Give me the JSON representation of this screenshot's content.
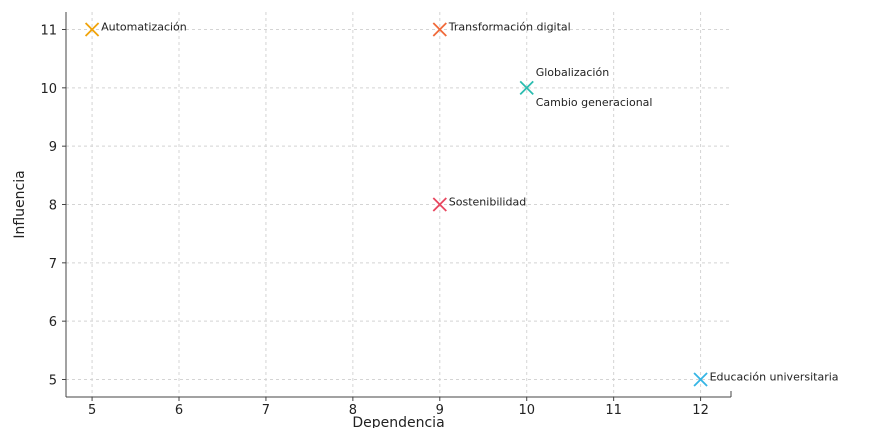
{
  "chart_data": {
    "type": "scatter",
    "title": "",
    "xlabel": "Dependencia",
    "ylabel": "Influencia",
    "xlim": [
      4.7,
      12.35
    ],
    "ylim": [
      4.7,
      11.3
    ],
    "x_ticks": [
      5,
      6,
      7,
      8,
      9,
      10,
      11,
      12
    ],
    "y_ticks": [
      5,
      6,
      7,
      8,
      9,
      10,
      11
    ],
    "grid": true,
    "marker": "x",
    "points": [
      {
        "label": "Automatización",
        "x": 5,
        "y": 11,
        "color": "#f0a30a",
        "label_pos": "right"
      },
      {
        "label": "Transformación digital",
        "x": 9,
        "y": 11,
        "color": "#f06a3a",
        "label_pos": "right"
      },
      {
        "label": "Globalización",
        "x": 10,
        "y": 10,
        "color": "#2bbcb0",
        "label_pos": "above"
      },
      {
        "label": "Cambio generacional",
        "x": 10,
        "y": 10,
        "color": "#2bbcb0",
        "label_pos": "below"
      },
      {
        "label": "Sostenibilidad",
        "x": 9,
        "y": 8,
        "color": "#e8475f",
        "label_pos": "right"
      },
      {
        "label": "Educación universitaria",
        "x": 12,
        "y": 5,
        "color": "#35b5e5",
        "label_pos": "right"
      }
    ]
  }
}
